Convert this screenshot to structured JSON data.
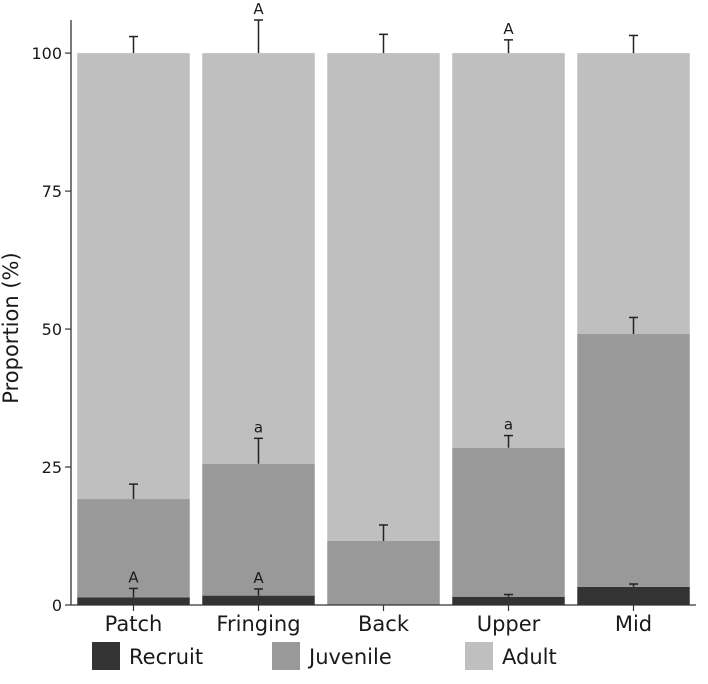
{
  "chart_data": {
    "type": "bar",
    "stacked": true,
    "categories": [
      "Patch",
      "Fringing",
      "Back",
      "Upper",
      "Mid"
    ],
    "series": [
      {
        "name": "Recruit",
        "color": "#333333",
        "values": [
          1.4,
          1.7,
          0.0,
          1.5,
          3.3
        ],
        "error": [
          1.6,
          1.2,
          0.0,
          0.4,
          0.5
        ]
      },
      {
        "name": "Juvenile",
        "color": "#999999",
        "values": [
          17.8,
          23.9,
          11.6,
          27.0,
          45.8
        ],
        "error": [
          2.7,
          4.6,
          2.9,
          2.2,
          3.0
        ]
      },
      {
        "name": "Adult",
        "color": "#bfbfbf",
        "values": [
          80.8,
          74.4,
          88.4,
          71.5,
          50.9
        ],
        "error": [
          3.0,
          6.0,
          3.4,
          2.4,
          3.2
        ]
      }
    ],
    "annotations": [
      {
        "category": "Patch",
        "series": "Recruit",
        "text": "A"
      },
      {
        "category": "Fringing",
        "series": "Recruit",
        "text": "A"
      },
      {
        "category": "Fringing",
        "series": "Juvenile",
        "text": "a"
      },
      {
        "category": "Fringing",
        "series": "Adult",
        "text": "A"
      },
      {
        "category": "Upper",
        "series": "Juvenile",
        "text": "a"
      },
      {
        "category": "Upper",
        "series": "Adult",
        "text": "A"
      }
    ],
    "ylabel": "Proportion (%)",
    "xlabel": "",
    "ylim": [
      0,
      106
    ],
    "yticks": [
      0,
      25,
      50,
      75,
      100
    ],
    "grid": false,
    "legend_position": "bottom"
  }
}
